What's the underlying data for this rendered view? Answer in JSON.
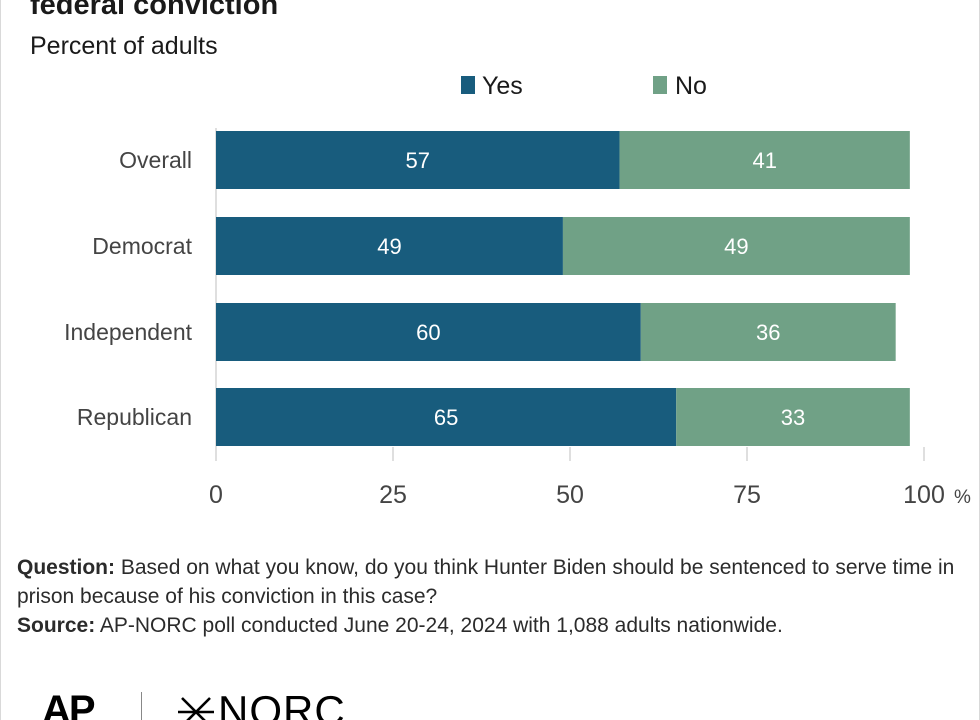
{
  "header": {
    "title": "federal conviction",
    "subtitle": "Percent of adults"
  },
  "colors": {
    "yes": "#185c7d",
    "no": "#70a186",
    "axis": "#bfbfbf",
    "label_text": "#ffffff"
  },
  "chart_data": {
    "type": "bar",
    "orientation": "horizontal",
    "stacked": true,
    "categories": [
      "Overall",
      "Democrat",
      "Independent",
      "Republican"
    ],
    "series": [
      {
        "name": "Yes",
        "values": [
          57,
          49,
          60,
          65
        ]
      },
      {
        "name": "No",
        "values": [
          41,
          49,
          36,
          33
        ]
      }
    ],
    "x_ticks": [
      "0",
      "25",
      "50",
      "75",
      "100"
    ],
    "x_unit": "%",
    "xlim": [
      0,
      100
    ],
    "grid": false,
    "legend_position": "top"
  },
  "footnote": {
    "question_label": "Question:",
    "question_text": " Based on what you know, do you think Hunter Biden should be sentenced to serve time in prison because of his conviction in this case?",
    "source_label": "Source:",
    "source_text": " AP-NORC poll conducted June 20-24, 2024 with 1,088 adults nationwide."
  },
  "logos": {
    "ap": "AP",
    "norc": "NORC"
  }
}
